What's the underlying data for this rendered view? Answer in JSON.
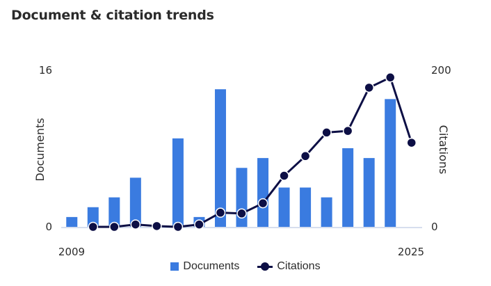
{
  "header": {
    "title": "Document & citation trends"
  },
  "colors": {
    "bar": "#3a7be0",
    "line": "#0d0f45",
    "axis": "#c8d4e8"
  },
  "chart_data": {
    "type": "bar",
    "title": "Document & citation trends",
    "x": [
      2009,
      2010,
      2011,
      2012,
      2013,
      2014,
      2015,
      2016,
      2017,
      2018,
      2019,
      2020,
      2021,
      2022,
      2023,
      2024,
      2025
    ],
    "x_tick_labels": [
      "2009",
      "2025"
    ],
    "series": [
      {
        "name": "Documents",
        "type": "bar",
        "axis": "left",
        "values": [
          1,
          2,
          3,
          5,
          0,
          9,
          1,
          14,
          6,
          7,
          4,
          4,
          3,
          8,
          7,
          13,
          0
        ]
      },
      {
        "name": "Citations",
        "type": "line",
        "axis": "right",
        "values": [
          null,
          0,
          0,
          3,
          1,
          0,
          3,
          18,
          17,
          30,
          65,
          90,
          120,
          122,
          177,
          190,
          107
        ]
      }
    ],
    "left_axis": {
      "label": "Documents",
      "range": [
        0,
        16
      ],
      "tick_labels": [
        "0",
        "16"
      ]
    },
    "right_axis": {
      "label": "Citations",
      "range": [
        0,
        200
      ],
      "tick_labels": [
        "0",
        "200"
      ]
    },
    "grid": false,
    "legend": {
      "position": "bottom",
      "items": [
        "Documents",
        "Citations"
      ]
    }
  }
}
